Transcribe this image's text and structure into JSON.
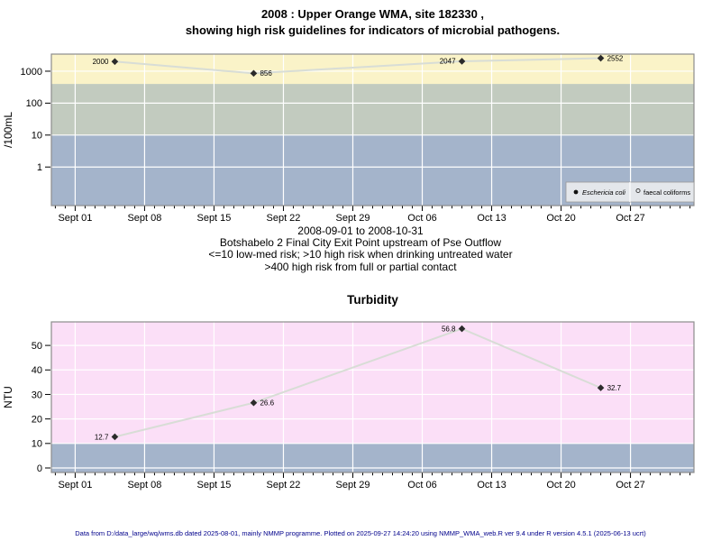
{
  "colors": {
    "grid": "#FFFFFF",
    "series_line": "#D8DDD6",
    "marker": "#2B2B2B",
    "plot_border": "#8C8C8C",
    "legend_bg": "#E4E7EB",
    "legend_border": "#9A9A9A",
    "legend_muted_text": "#444444",
    "footer_text": "#00008B",
    "band_yellow": "#FAF3C8",
    "band_green": "#C2CBBF",
    "band_blue": "#A4B4CB",
    "band_pink": "#FBDFF7"
  },
  "chart_data": [
    {
      "type": "line",
      "title_lines": [
        "2008 : Upper Orange WMA, site 182330 ,",
        "showing high risk guidelines for indicators of microbial pathogens."
      ],
      "ylabel": "/100mL",
      "yscale": "log",
      "ylim": [
        0.062,
        3430
      ],
      "yticks": [
        1,
        10,
        100,
        1000
      ],
      "xlim_days": [
        -2.4,
        62.4
      ],
      "x_ticks": [
        {
          "day": 0,
          "label": "Sept 01"
        },
        {
          "day": 7,
          "label": "Sept 08"
        },
        {
          "day": 14,
          "label": "Sept 15"
        },
        {
          "day": 21,
          "label": "Sept 22"
        },
        {
          "day": 28,
          "label": "Sept 29"
        },
        {
          "day": 35,
          "label": "Oct 06"
        },
        {
          "day": 42,
          "label": "Oct 13"
        },
        {
          "day": 49,
          "label": "Oct 20"
        },
        {
          "day": 56,
          "label": "Oct 27"
        }
      ],
      "bands": [
        {
          "from": "min",
          "to": 10,
          "color": "#A4B4CB",
          "meaning": "<=10 low-med risk"
        },
        {
          "from": 10,
          "to": 400,
          "color": "#C2CBBF",
          "meaning": ">10 high risk when drinking untreated water"
        },
        {
          "from": 400,
          "to": "max",
          "color": "#FAF3C8",
          "meaning": ">400 high risk from full or partial contact"
        }
      ],
      "grid": true,
      "legend_position": "bottom-right",
      "legend": [
        {
          "marker": "filled-circle",
          "label": "Eschericia coli",
          "italic": true
        },
        {
          "marker": "open-circle",
          "label": "faecal coliforms",
          "italic": false
        }
      ],
      "series": [
        {
          "name": "Eschericia coli",
          "marker": "filled-diamond",
          "x_days": [
            4,
            18,
            39,
            53
          ],
          "values": [
            2000,
            856,
            2047,
            2552
          ],
          "point_labels": [
            "2000",
            "856",
            "2047",
            "2552"
          ],
          "label_side": [
            "left",
            "right",
            "left",
            "right"
          ]
        }
      ]
    },
    {
      "type": "line",
      "title": "Turbidity",
      "ylabel": "NTU",
      "yscale": "linear",
      "ylim": [
        -1.84,
        59.6
      ],
      "yticks": [
        0,
        10,
        20,
        30,
        40,
        50
      ],
      "xlim_days": [
        -2.4,
        62.4
      ],
      "x_ticks": [
        {
          "day": 0,
          "label": "Sept 01"
        },
        {
          "day": 7,
          "label": "Sept 08"
        },
        {
          "day": 14,
          "label": "Sept 15"
        },
        {
          "day": 21,
          "label": "Sept 22"
        },
        {
          "day": 28,
          "label": "Sept 29"
        },
        {
          "day": 35,
          "label": "Oct 06"
        },
        {
          "day": 42,
          "label": "Oct 13"
        },
        {
          "day": 49,
          "label": "Oct 20"
        },
        {
          "day": 56,
          "label": "Oct 27"
        }
      ],
      "bands": [
        {
          "from": "min",
          "to": 10,
          "color": "#A4B4CB",
          "meaning": "low band 0-10"
        },
        {
          "from": 10,
          "to": "max",
          "color": "#FBDFF7",
          "meaning": "above 10"
        }
      ],
      "grid": true,
      "series": [
        {
          "name": "Turbidity",
          "marker": "filled-diamond",
          "x_days": [
            4,
            18,
            39,
            53
          ],
          "values": [
            12.7,
            26.6,
            56.8,
            32.7
          ],
          "point_labels": [
            "12.7",
            "26.6",
            "56.8",
            "32.7"
          ],
          "label_side": [
            "left",
            "right",
            "left",
            "right"
          ]
        }
      ]
    }
  ],
  "caption": {
    "lines": [
      "2008-09-01 to 2008-10-31",
      "Botshabelo 2 Final City Exit Point upstream of Pse Outflow",
      "<=10 low-med risk; >10 high risk when drinking untreated water",
      ">400 high risk from full or partial contact"
    ]
  },
  "footer": {
    "text": "Data from D:/data_large/wq/wms.db dated 2025-08-01, mainly NMMP programme. Plotted on 2025-09-27 14:24:20 using NMMP_WMA_web.R ver 9.4 under R version 4.5.1 (2025-06-13 ucrt)"
  }
}
